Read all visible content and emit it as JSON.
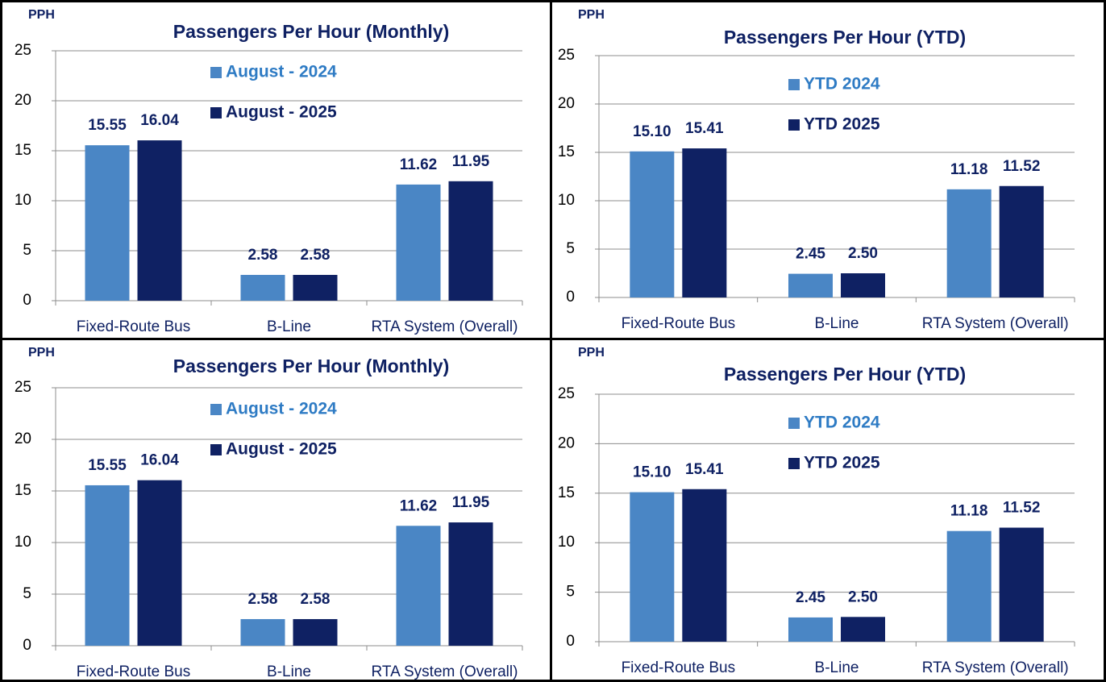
{
  "chart_data": [
    {
      "type": "bar",
      "title": "Passengers Per Hour (Monthly)",
      "y_label": "PPH",
      "categories": [
        "Fixed-Route Bus",
        "B-Line",
        "RTA System (Overall)"
      ],
      "series": [
        {
          "name": "August - 2024",
          "color": "#4a86c5",
          "values": [
            15.55,
            2.58,
            11.62
          ],
          "value_labels": [
            "15.55",
            "2.58",
            "11.62"
          ]
        },
        {
          "name": "August - 2025",
          "color": "#0f2163",
          "values": [
            16.04,
            2.58,
            11.95
          ],
          "value_labels": [
            "16.04",
            "2.58",
            "11.95"
          ]
        }
      ],
      "ylim": [
        0,
        25
      ],
      "yticks": [
        0,
        5,
        10,
        15,
        20,
        25
      ],
      "grid": true
    },
    {
      "type": "bar",
      "title": "Passengers Per Hour (YTD)",
      "y_label": "PPH",
      "categories": [
        "Fixed-Route Bus",
        "B-Line",
        "RTA System (Overall)"
      ],
      "series": [
        {
          "name": "YTD 2024",
          "color": "#4a86c5",
          "values": [
            15.1,
            2.45,
            11.18
          ],
          "value_labels": [
            "15.10",
            "2.45",
            "11.18"
          ]
        },
        {
          "name": "YTD 2025",
          "color": "#0f2163",
          "values": [
            15.41,
            2.5,
            11.52
          ],
          "value_labels": [
            "15.41",
            "2.50",
            "11.52"
          ]
        }
      ],
      "ylim": [
        0,
        25
      ],
      "yticks": [
        0,
        5,
        10,
        15,
        20,
        25
      ],
      "grid": true
    },
    {
      "type": "bar",
      "title": "Passengers Per Hour (Monthly)",
      "y_label": "PPH",
      "categories": [
        "Fixed-Route Bus",
        "B-Line",
        "RTA System (Overall)"
      ],
      "series": [
        {
          "name": "August - 2024",
          "color": "#4a86c5",
          "values": [
            15.55,
            2.58,
            11.62
          ],
          "value_labels": [
            "15.55",
            "2.58",
            "11.62"
          ]
        },
        {
          "name": "August - 2025",
          "color": "#0f2163",
          "values": [
            16.04,
            2.58,
            11.95
          ],
          "value_labels": [
            "16.04",
            "2.58",
            "11.95"
          ]
        }
      ],
      "ylim": [
        0,
        25
      ],
      "yticks": [
        0,
        5,
        10,
        15,
        20,
        25
      ],
      "grid": true
    },
    {
      "type": "bar",
      "title": "Passengers Per Hour (YTD)",
      "y_label": "PPH",
      "categories": [
        "Fixed-Route Bus",
        "B-Line",
        "RTA System (Overall)"
      ],
      "series": [
        {
          "name": "YTD 2024",
          "color": "#4a86c5",
          "values": [
            15.1,
            2.45,
            11.18
          ],
          "value_labels": [
            "15.10",
            "2.45",
            "11.18"
          ]
        },
        {
          "name": "YTD 2025",
          "color": "#0f2163",
          "values": [
            15.41,
            2.5,
            11.52
          ],
          "value_labels": [
            "15.41",
            "2.50",
            "11.52"
          ]
        }
      ],
      "ylim": [
        0,
        25
      ],
      "yticks": [
        0,
        5,
        10,
        15,
        20,
        25
      ],
      "grid": true
    }
  ]
}
